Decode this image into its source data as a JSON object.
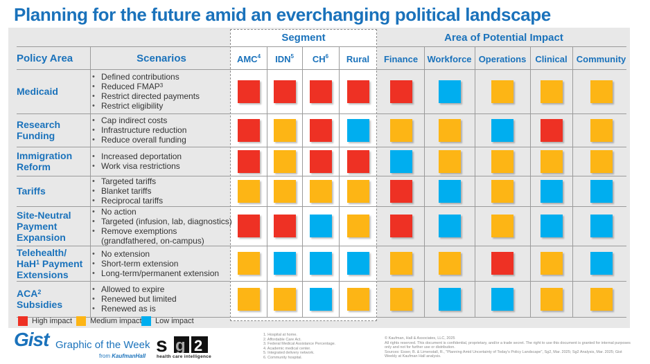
{
  "title": "Planning for the future amid an everchanging political landscape",
  "headers": {
    "policy_area": "Policy Area",
    "scenarios": "Scenarios",
    "segment_group": "Segment",
    "impact_group": "Area of Potential Impact",
    "segment_columns": [
      {
        "label": "AMC",
        "sup": "4"
      },
      {
        "label": "IDN",
        "sup": "5"
      },
      {
        "label": "CH",
        "sup": "6"
      },
      {
        "label": "Rural",
        "sup": ""
      }
    ],
    "impact_columns": [
      {
        "label": "Finance"
      },
      {
        "label": "Workforce"
      },
      {
        "label": "Operations"
      },
      {
        "label": "Clinical"
      },
      {
        "label": "Community"
      }
    ]
  },
  "colors": {
    "high": "#ee3124",
    "medium": "#fdb515",
    "low": "#00aeef",
    "title": "#1a72bb"
  },
  "legend": [
    {
      "level": "high",
      "label": "High impact"
    },
    {
      "level": "medium",
      "label": "Medium impact"
    },
    {
      "level": "low",
      "label": "Low impact"
    }
  ],
  "chart_data": {
    "type": "heatmap",
    "title": "Planning for the future amid an everchanging political landscape",
    "columns": [
      "AMC",
      "IDN",
      "CH",
      "Rural",
      "Finance",
      "Workforce",
      "Operations",
      "Clinical",
      "Community"
    ],
    "column_groups": [
      {
        "name": "Segment",
        "columns": [
          "AMC",
          "IDN",
          "CH",
          "Rural"
        ]
      },
      {
        "name": "Area of Potential Impact",
        "columns": [
          "Finance",
          "Workforce",
          "Operations",
          "Clinical",
          "Community"
        ]
      }
    ],
    "scale": [
      "high",
      "medium",
      "low"
    ],
    "rows": [
      {
        "policy_area": "Medicaid",
        "scenarios": [
          "Defined contributions",
          "Reduced FMAP³",
          "Restrict directed payments",
          "Restrict eligibility"
        ],
        "values": [
          "high",
          "high",
          "high",
          "high",
          "high",
          "low",
          "medium",
          "medium",
          "medium"
        ]
      },
      {
        "policy_area": "Research Funding",
        "scenarios": [
          "Cap indirect costs",
          "Infrastructure reduction",
          "Reduce overall funding"
        ],
        "values": [
          "high",
          "medium",
          "high",
          "low",
          "medium",
          "medium",
          "low",
          "high",
          "medium"
        ]
      },
      {
        "policy_area": "Immigration Reform",
        "scenarios": [
          "Increased deportation",
          "Work visa restrictions"
        ],
        "values": [
          "high",
          "medium",
          "high",
          "high",
          "low",
          "medium",
          "medium",
          "medium",
          "medium"
        ]
      },
      {
        "policy_area": "Tariffs",
        "scenarios": [
          "Targeted tariffs",
          "Blanket tariffs",
          "Reciprocal tariffs"
        ],
        "values": [
          "medium",
          "medium",
          "medium",
          "medium",
          "high",
          "low",
          "medium",
          "low",
          "low"
        ]
      },
      {
        "policy_area": "Site-Neutral Payment Expansion",
        "scenarios": [
          "No action",
          "Targeted (infusion, lab, diagnostics)",
          "Remove exemptions (grandfathered, on-campus)"
        ],
        "values": [
          "high",
          "high",
          "low",
          "medium",
          "high",
          "low",
          "medium",
          "low",
          "low"
        ]
      },
      {
        "policy_area": "Telehealth/ HaH¹ Payment Extensions",
        "scenarios": [
          "No extension",
          "Short-term extension",
          "Long-term/permanent extension"
        ],
        "values": [
          "medium",
          "low",
          "low",
          "low",
          "medium",
          "medium",
          "high",
          "medium",
          "low"
        ]
      },
      {
        "policy_area": "ACA² Subsidies",
        "scenarios": [
          "Allowed to expire",
          "Renewed but limited",
          "Renewed as is"
        ],
        "values": [
          "medium",
          "medium",
          "low",
          "medium",
          "medium",
          "low",
          "low",
          "medium",
          "medium"
        ]
      }
    ]
  },
  "policy_labels": [
    {
      "lines": [
        "Medicaid"
      ]
    },
    {
      "lines": [
        "Research",
        "Funding"
      ]
    },
    {
      "lines": [
        "Immigration",
        "Reform"
      ]
    },
    {
      "lines": [
        "Tariffs"
      ]
    },
    {
      "lines": [
        "Site-Neutral",
        "Payment",
        "Expansion"
      ]
    },
    {
      "lines": [
        "Telehealth/",
        "HaH¹ Payment",
        "Extensions"
      ]
    },
    {
      "lines": [
        "ACA²",
        "Subsidies"
      ]
    }
  ],
  "scenario_lines": [
    [
      {
        "t": "Defined contributions"
      },
      {
        "t": "Reduced FMAP³"
      },
      {
        "t": "Restrict directed payments"
      },
      {
        "t": "Restrict eligibility"
      }
    ],
    [
      {
        "t": "Cap indirect costs"
      },
      {
        "t": "Infrastructure reduction"
      },
      {
        "t": "Reduce overall funding"
      }
    ],
    [
      {
        "t": "Increased deportation"
      },
      {
        "t": "Work visa restrictions"
      }
    ],
    [
      {
        "t": "Targeted tariffs"
      },
      {
        "t": "Blanket tariffs"
      },
      {
        "t": "Reciprocal tariffs"
      }
    ],
    [
      {
        "t": "No action"
      },
      {
        "t": "Targeted (infusion, lab, diagnostics)"
      },
      {
        "t": "Remove exemptions"
      },
      {
        "t": "(grandfathered, on-campus)",
        "cont": true
      }
    ],
    [
      {
        "t": "No extension"
      },
      {
        "t": "Short-term extension"
      },
      {
        "t": "Long-term/permanent extension"
      }
    ],
    [
      {
        "t": "Allowed to expire"
      },
      {
        "t": "Renewed but limited"
      },
      {
        "t": "Renewed as is"
      }
    ]
  ],
  "branding": {
    "gist": "Gist",
    "graphic_of_week": "Graphic of the Week",
    "from": "from",
    "kaufmanhall": "KaufmanHall",
    "sg2_tagline": "health care intelligence"
  },
  "footnotes": [
    "1. Hospital at home.",
    "2. Affordable Care Act.",
    "3. Federal Medical Assistance Percentage.",
    "4. Academic medical center.",
    "5. Integrated delivery network.",
    "6. Community hospital."
  ],
  "copyright": [
    "© Kaufman, Hall & Associates, LLC, 2025",
    "All rights reserved. This document is confidential, proprietary, and/or a trade secret. The right to use this document is granted for internal purposes only and not for further use or distribution.",
    "Sources: Esser, B. & Limenstall, R., \"Planning Amid Uncertainty of Today's Policy Landscape\", Sg2, Mar. 2025; Sg2 Analysis, Mar. 2025; Gist Weekly at Kaufman Hall analysis."
  ]
}
